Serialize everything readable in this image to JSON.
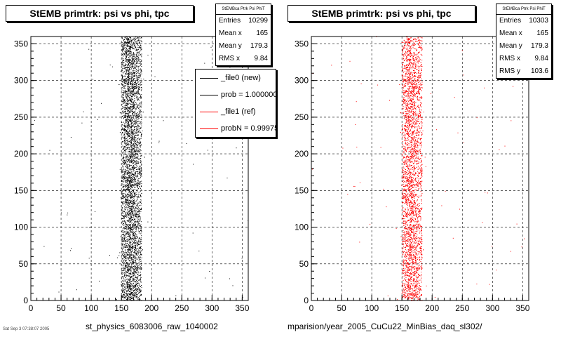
{
  "chart_data": [
    {
      "type": "scatter",
      "title": "StEMB primtrk: psi vs phi, tpc",
      "xlabel": "st_physics_6083006_raw_1040002",
      "ylabel": "",
      "xlim": [
        0,
        360
      ],
      "ylim": [
        0,
        360
      ],
      "x_ticks": [
        0,
        50,
        100,
        150,
        200,
        250,
        300,
        350
      ],
      "y_ticks": [
        0,
        50,
        100,
        150,
        200,
        250,
        300,
        350
      ],
      "grid": true,
      "series": [
        {
          "color": "#000000",
          "center_x": 165,
          "center_y": 179.3,
          "rms_x": 9.84,
          "band": [
            150,
            183
          ]
        }
      ],
      "stats": {
        "header": "StEMBca Ptrk Psi PhiT",
        "rows": [
          {
            "label": "Entries",
            "value": "10299"
          },
          {
            "label": "Mean x",
            "value": "165"
          },
          {
            "label": "Mean y",
            "value": "179.3"
          },
          {
            "label": "RMS x",
            "value": "9.84"
          }
        ]
      },
      "legend": {
        "placement": "top-right",
        "entries": [
          {
            "label": "_file0 (new)",
            "color": "#000000"
          },
          {
            "label": "prob = 1.000000",
            "color": "#000000"
          },
          {
            "label": "_file1 (ref)",
            "color": "#ff0000"
          },
          {
            "label": "probN = 0.99975",
            "color": "#ff0000"
          }
        ]
      }
    },
    {
      "type": "scatter",
      "title": "StEMB primtrk: psi vs phi, tpc",
      "xlabel": "mparision/year_2005_CuCu22_MinBias_daq_sl302/",
      "ylabel": "",
      "xlim": [
        0,
        360
      ],
      "ylim": [
        0,
        360
      ],
      "x_ticks": [
        0,
        50,
        100,
        150,
        200,
        250,
        300,
        350
      ],
      "y_ticks": [
        0,
        50,
        100,
        150,
        200,
        250,
        300,
        350
      ],
      "grid": true,
      "series": [
        {
          "color": "#ff0000",
          "center_x": 165,
          "center_y": 179.3,
          "rms_x": 9.84,
          "band": [
            150,
            183
          ]
        }
      ],
      "stats": {
        "header": "StEMBca Ptrk Psi PhiT",
        "rows": [
          {
            "label": "Entries",
            "value": "10303"
          },
          {
            "label": "Mean x",
            "value": "165"
          },
          {
            "label": "Mean y",
            "value": "179.3"
          },
          {
            "label": "RMS x",
            "value": "9.84"
          },
          {
            "label": "RMS y",
            "value": "103.6"
          }
        ]
      }
    }
  ],
  "footer_text": "Sat Sep 3 07:38:07 2005"
}
